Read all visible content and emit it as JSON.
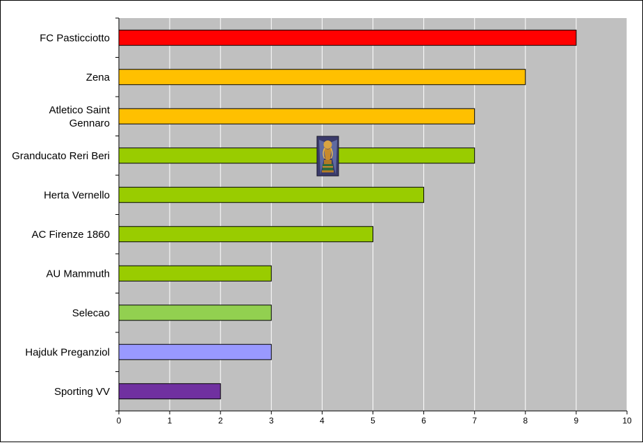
{
  "chart_data": {
    "type": "bar",
    "orientation": "horizontal",
    "categories": [
      "FC Pasticciotto",
      "Zena",
      "Atletico Saint Gennaro",
      "Granducato Reri Beri",
      "Herta Vernello",
      "AC Firenze 1860",
      "AU Mammuth",
      "Selecao",
      "Hajduk Preganziol",
      "Sporting VV"
    ],
    "category_lines": [
      [
        "FC Pasticciotto"
      ],
      [
        "Zena"
      ],
      [
        "Atletico Saint",
        "Gennaro"
      ],
      [
        "Granducato Reri Beri"
      ],
      [
        "Herta Vernello"
      ],
      [
        "AC Firenze 1860"
      ],
      [
        "AU Mammuth"
      ],
      [
        "Selecao"
      ],
      [
        "Hajduk Preganziol"
      ],
      [
        "Sporting VV"
      ]
    ],
    "values": [
      9,
      8,
      7,
      7,
      6,
      5,
      3,
      3,
      3,
      2
    ],
    "colors": [
      "#ff0000",
      "#ffc000",
      "#ffc000",
      "#99cc00",
      "#99cc00",
      "#99cc00",
      "#99cc00",
      "#92d050",
      "#9999ff",
      "#7030a0"
    ],
    "xlim": [
      0,
      10
    ],
    "xticks": [
      0,
      1,
      2,
      3,
      4,
      5,
      6,
      7,
      8,
      9,
      10
    ],
    "grid": true,
    "plot_background": "#c0c0c0",
    "gridline_color": "#ffffff",
    "title": "",
    "xlabel": "",
    "ylabel": "",
    "icons": [
      "trophy-icon"
    ]
  }
}
